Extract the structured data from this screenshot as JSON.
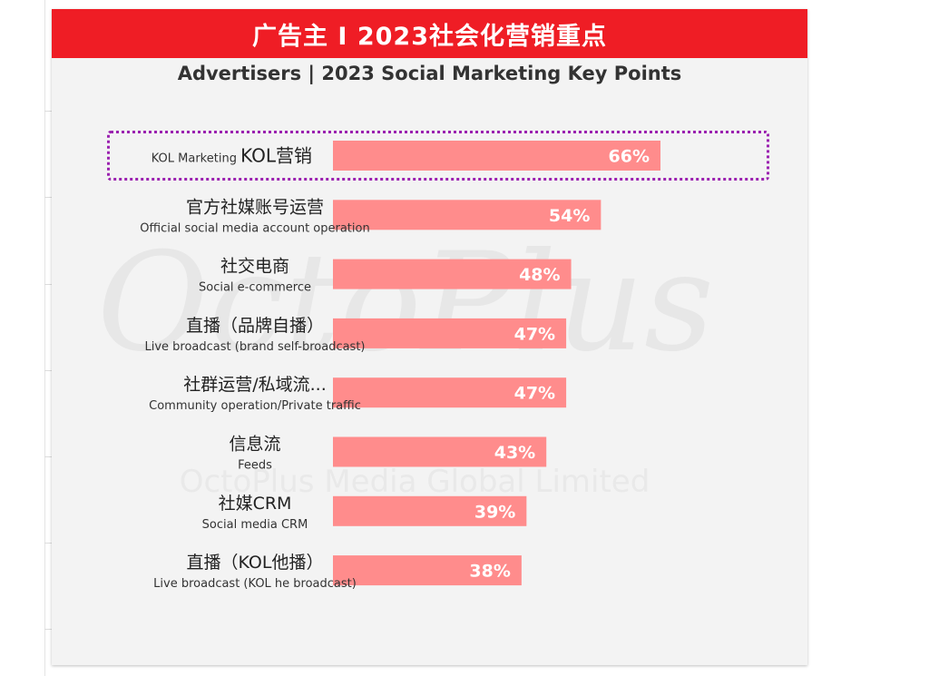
{
  "header": {
    "title": "广告主 I 2023社会化营销重点",
    "subtitle": "Advertisers | 2023 Social Marketing Key Points"
  },
  "watermark": {
    "logo": "OctoPlus",
    "text": "OctoPlus Media Global Limited"
  },
  "colors": {
    "banner": "#ef1d25",
    "bar": "#ff8c8c",
    "highlight": "#9b22b0",
    "background": "#f3f3f3"
  },
  "chart_data": {
    "type": "bar",
    "orientation": "horizontal",
    "categories": [
      {
        "label_cn": "KOL营销",
        "label_en": "KOL Marketing",
        "inline": true
      },
      {
        "label_cn": "官方社媒账号运营",
        "label_en": "Official social media account operation"
      },
      {
        "label_cn": "社交电商",
        "label_en": "Social e-commerce"
      },
      {
        "label_cn": "直播（品牌自播）",
        "label_en": "Live broadcast (brand self-broadcast)"
      },
      {
        "label_cn": "社群运营/私域流...",
        "label_en": "Community operation/Private traffic"
      },
      {
        "label_cn": "信息流",
        "label_en": "Feeds"
      },
      {
        "label_cn": "社媒CRM",
        "label_en": "Social media CRM"
      },
      {
        "label_cn": "直播（KOL他播）",
        "label_en": "Live broadcast (KOL he broadcast)"
      }
    ],
    "values": [
      66,
      54,
      48,
      47,
      47,
      43,
      39,
      38
    ],
    "value_labels": [
      "66%",
      "54%",
      "48%",
      "47%",
      "47%",
      "43%",
      "39%",
      "38%"
    ],
    "highlighted_index": 0,
    "xlim": [
      0,
      100
    ]
  }
}
